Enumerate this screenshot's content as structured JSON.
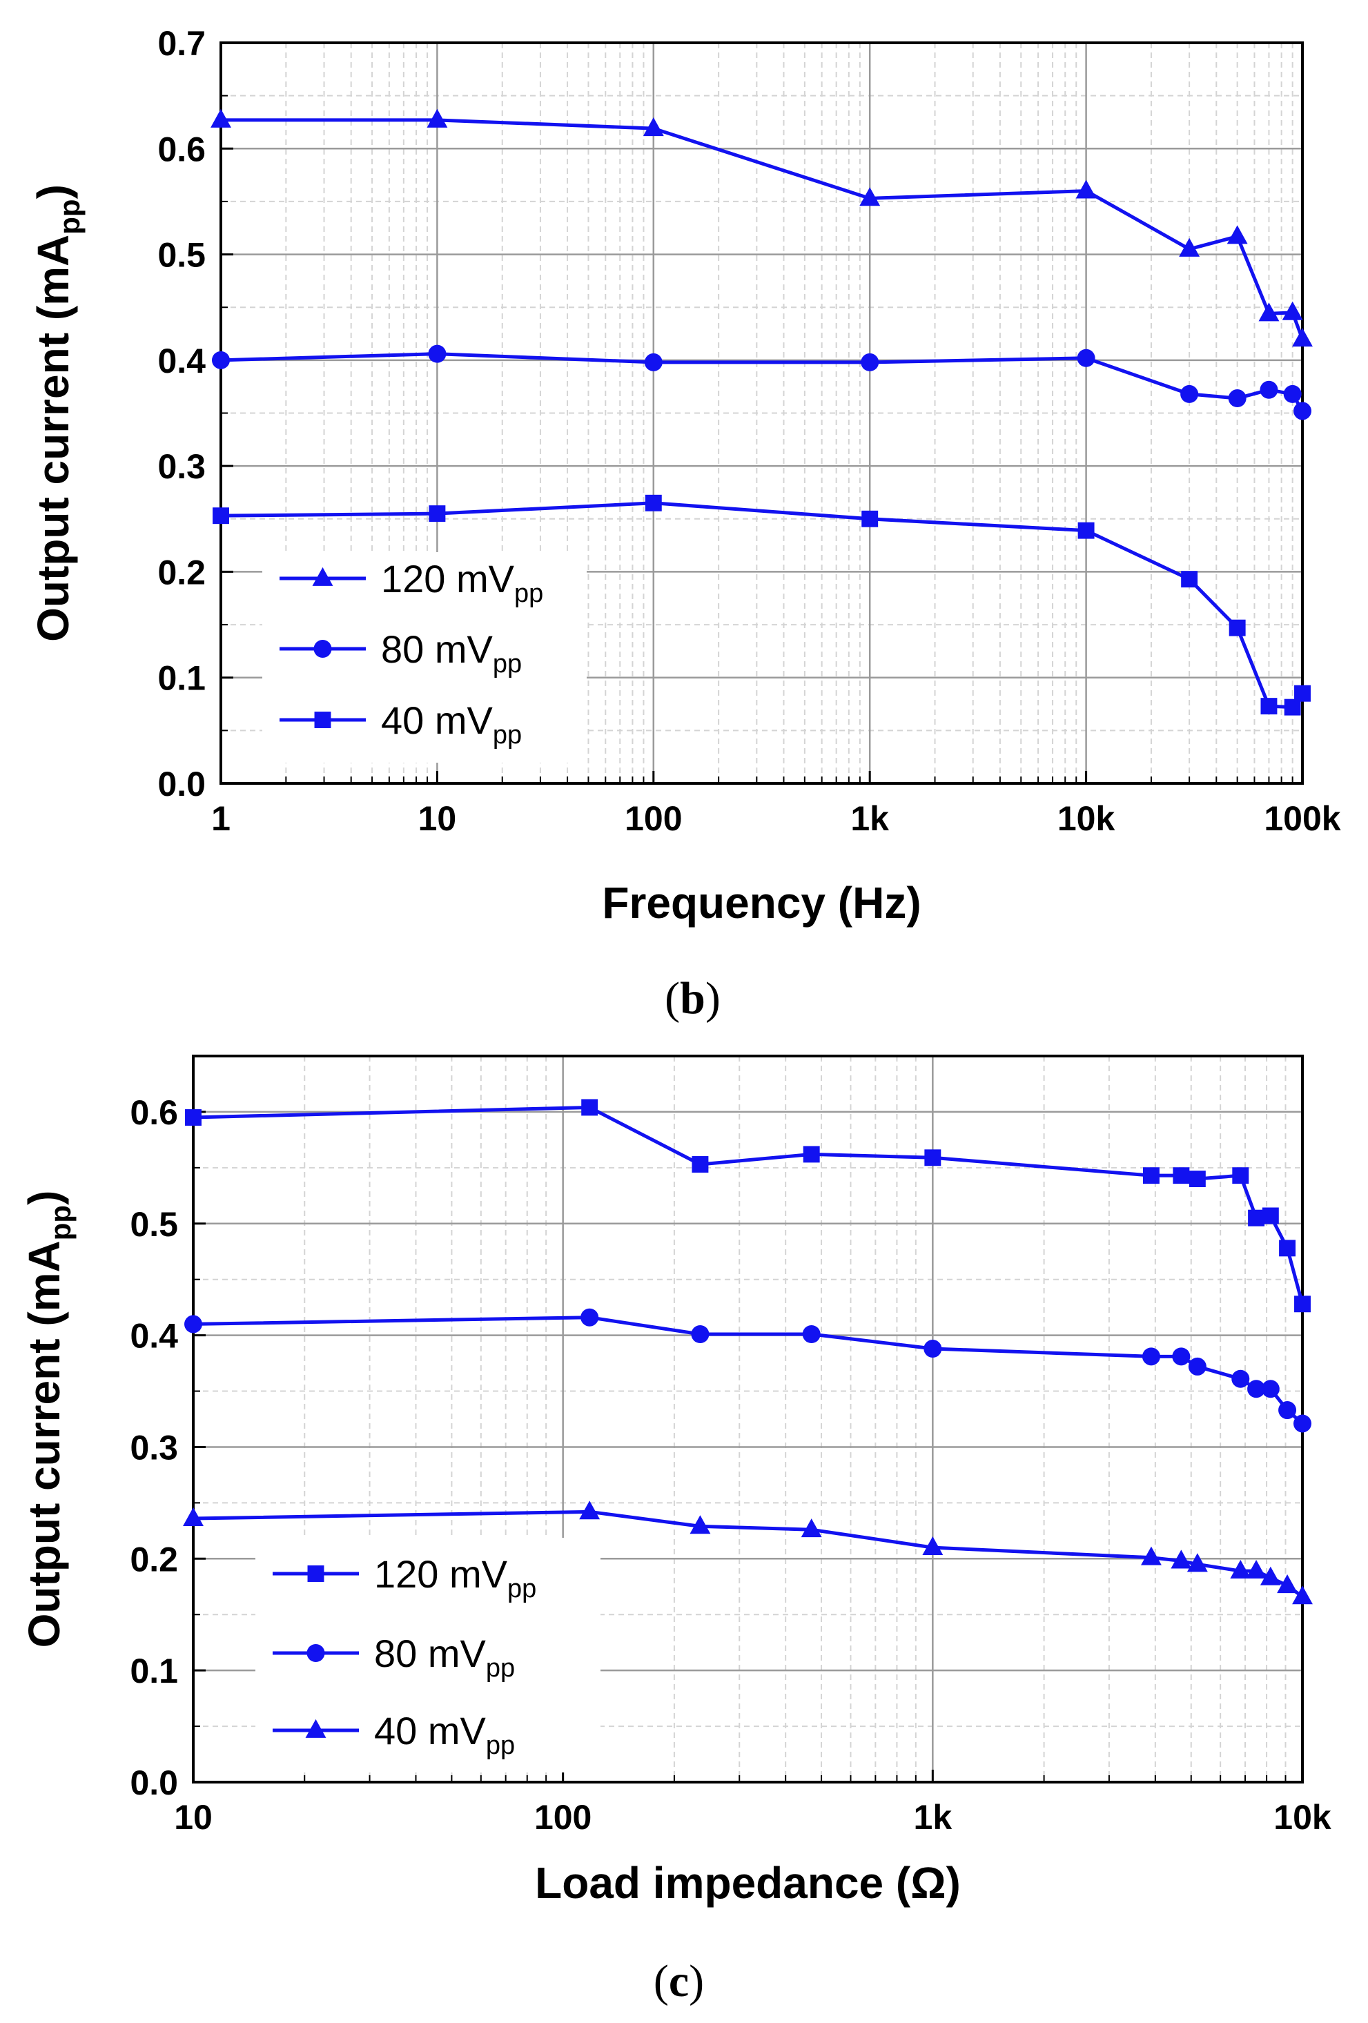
{
  "colors": {
    "series": "#1212f0",
    "grid_major": "#9a9a9a",
    "grid_minor": "#d4d4d4",
    "axis": "#000000",
    "legend_bg": "#ffffff"
  },
  "chart_data": [
    {
      "id": "b",
      "type": "line",
      "caption": {
        "open": "(",
        "letter": "b",
        "close": ")"
      },
      "xlabel": "Frequency (Hz)",
      "ylabel": {
        "main": "Output current (mA",
        "sub": "pp",
        "close": ")"
      },
      "xscale": "log",
      "xlim": [
        1,
        100000
      ],
      "ylim": [
        0,
        0.7
      ],
      "xticks": [
        1,
        10,
        100,
        1000,
        10000,
        100000
      ],
      "xtick_labels": [
        "1",
        "10",
        "100",
        "1k",
        "10k",
        "100k"
      ],
      "yticks": [
        0,
        0.1,
        0.2,
        0.3,
        0.4,
        0.5,
        0.6,
        0.7
      ],
      "ytick_labels": [
        "0.0",
        "0.1",
        "0.2",
        "0.3",
        "0.4",
        "0.5",
        "0.6",
        "0.7"
      ],
      "grid": true,
      "legend_position": "bottom-left",
      "series": [
        {
          "name": "120 mV",
          "name_sub": "pp",
          "marker": "triangle",
          "x": [
            1,
            10,
            100,
            1000,
            10000,
            30000,
            50000,
            70000,
            90000,
            100000
          ],
          "y": [
            0.627,
            0.627,
            0.619,
            0.553,
            0.56,
            0.505,
            0.517,
            0.444,
            0.445,
            0.42
          ]
        },
        {
          "name": "80 mV",
          "name_sub": "pp",
          "marker": "circle",
          "x": [
            1,
            10,
            100,
            1000,
            10000,
            30000,
            50000,
            70000,
            90000,
            100000
          ],
          "y": [
            0.4,
            0.406,
            0.398,
            0.398,
            0.402,
            0.368,
            0.364,
            0.372,
            0.368,
            0.352
          ]
        },
        {
          "name": "40 mV",
          "name_sub": "pp",
          "marker": "square",
          "x": [
            1,
            10,
            100,
            1000,
            10000,
            30000,
            50000,
            70000,
            90000,
            100000
          ],
          "y": [
            0.253,
            0.255,
            0.265,
            0.25,
            0.239,
            0.193,
            0.147,
            0.073,
            0.072,
            0.085
          ]
        }
      ]
    },
    {
      "id": "c",
      "type": "line",
      "caption": {
        "open": "(",
        "letter": "c",
        "close": ")"
      },
      "xlabel": "Load impedance (Ω)",
      "ylabel": {
        "main": "Output current (mA",
        "sub": "pp",
        "close": ")"
      },
      "xscale": "log",
      "xlim": [
        10,
        10000
      ],
      "ylim": [
        0,
        0.65
      ],
      "xticks": [
        10,
        100,
        1000,
        10000
      ],
      "xtick_labels": [
        "10",
        "100",
        "1k",
        "10k"
      ],
      "yticks": [
        0,
        0.1,
        0.2,
        0.3,
        0.4,
        0.5,
        0.6
      ],
      "ytick_labels": [
        "0.0",
        "0.1",
        "0.2",
        "0.3",
        "0.4",
        "0.5",
        "0.6"
      ],
      "grid": true,
      "legend_position": "bottom-left",
      "series": [
        {
          "name": "120 mV",
          "name_sub": "pp",
          "marker": "square",
          "x": [
            10,
            118,
            235,
            470,
            1000,
            3900,
            4700,
            5200,
            6800,
            7500,
            8200,
            9100,
            10000
          ],
          "y": [
            0.595,
            0.604,
            0.553,
            0.562,
            0.559,
            0.543,
            0.543,
            0.54,
            0.543,
            0.505,
            0.507,
            0.478,
            0.428
          ]
        },
        {
          "name": "80 mV",
          "name_sub": "pp",
          "marker": "circle",
          "x": [
            10,
            118,
            235,
            470,
            1000,
            3900,
            4700,
            5200,
            6800,
            7500,
            8200,
            9100,
            10000
          ],
          "y": [
            0.41,
            0.416,
            0.401,
            0.401,
            0.388,
            0.381,
            0.381,
            0.372,
            0.361,
            0.352,
            0.352,
            0.333,
            0.321
          ]
        },
        {
          "name": "40 mV",
          "name_sub": "pp",
          "marker": "triangle",
          "x": [
            10,
            118,
            235,
            470,
            1000,
            3900,
            4700,
            5200,
            6800,
            7500,
            8200,
            9100,
            10000
          ],
          "y": [
            0.236,
            0.242,
            0.229,
            0.226,
            0.21,
            0.201,
            0.198,
            0.195,
            0.189,
            0.189,
            0.183,
            0.176,
            0.166
          ]
        }
      ]
    }
  ]
}
